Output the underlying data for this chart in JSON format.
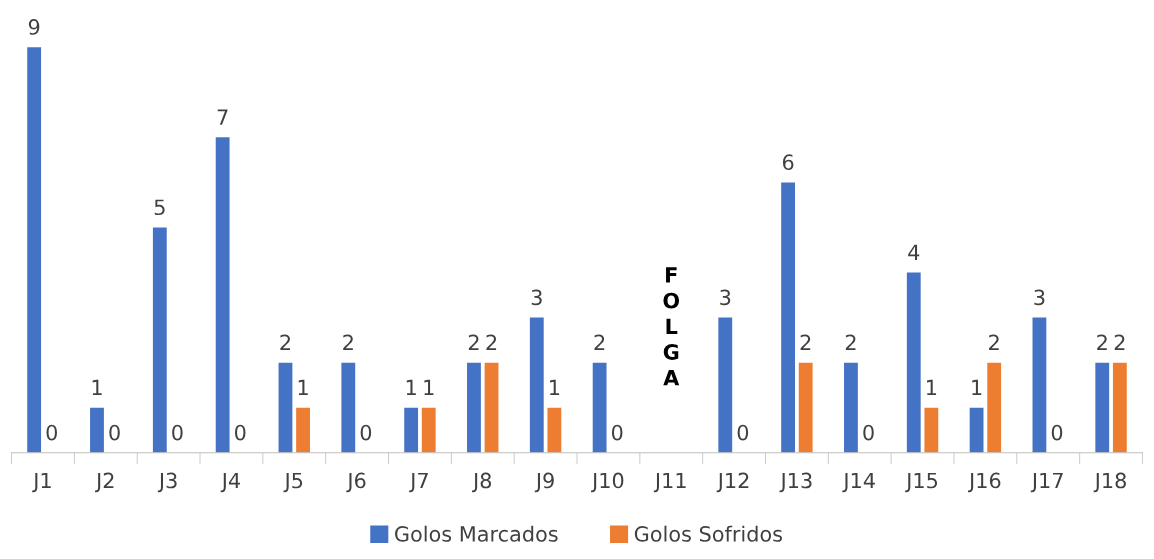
{
  "chart_data": {
    "type": "bar",
    "categories": [
      "J1",
      "J2",
      "J3",
      "J4",
      "J5",
      "J6",
      "J7",
      "J8",
      "J9",
      "J10",
      "J11",
      "J12",
      "J13",
      "J14",
      "J15",
      "J16",
      "J17",
      "J18"
    ],
    "series": [
      {
        "name": "Golos Marcados",
        "color": "#4472c4",
        "values": [
          9,
          1,
          5,
          7,
          2,
          2,
          1,
          2,
          3,
          2,
          null,
          3,
          6,
          2,
          4,
          1,
          3,
          2
        ]
      },
      {
        "name": "Golos Sofridos",
        "color": "#ed7d31",
        "values": [
          0,
          0,
          0,
          0,
          1,
          0,
          1,
          2,
          1,
          0,
          null,
          0,
          2,
          0,
          1,
          2,
          0,
          2
        ]
      }
    ],
    "data_labels": true,
    "legend": "bottom",
    "grid": false,
    "tick_labels": "x",
    "annotations": [
      "FOLGA"
    ]
  }
}
